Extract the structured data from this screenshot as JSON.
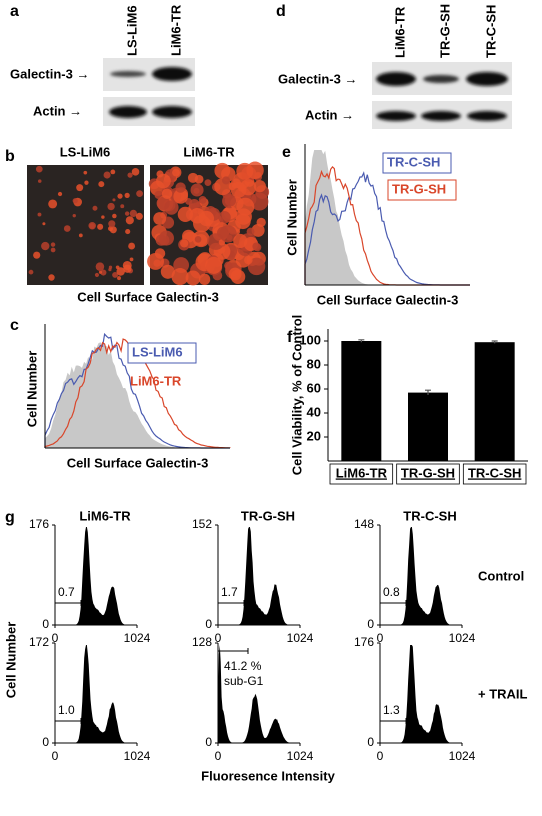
{
  "panel_a": {
    "label": "a",
    "lanes": [
      "LS-LiM6",
      "LiM6-TR"
    ],
    "rows": [
      "Galectin-3 →",
      "Actin →"
    ]
  },
  "panel_b": {
    "label": "b",
    "images": [
      "LS-LiM6",
      "LiM6-TR"
    ],
    "caption": "Cell Surface Galectin-3"
  },
  "panel_c": {
    "label": "c",
    "ylabel": "Cell Number",
    "xlabel": "Cell Surface Galectin-3",
    "legend": [
      {
        "name": "LS-LiM6",
        "color": "#4a5bb0"
      },
      {
        "name": "LiM6-TR",
        "color": "#d9462a"
      }
    ]
  },
  "panel_d": {
    "label": "d",
    "lanes": [
      "LiM6-TR",
      "TR-G-SH",
      "TR-C-SH"
    ],
    "rows": [
      "Galectin-3 →",
      "Actin →"
    ]
  },
  "panel_e": {
    "label": "e",
    "ylabel": "Cell Number",
    "xlabel": "Cell Surface Galectin-3",
    "legend": [
      {
        "name": "TR-C-SH",
        "color": "#4a5bb0"
      },
      {
        "name": "TR-G-SH",
        "color": "#d9462a"
      }
    ]
  },
  "chart_data": {
    "type": "bar",
    "panel_label": "f",
    "ylabel": "Cell Viability, % of Control",
    "categories": [
      "LiM6-TR",
      "TR-G-SH",
      "TR-C-SH"
    ],
    "values": [
      100,
      57,
      99
    ],
    "errors": [
      1,
      2,
      1
    ],
    "color": "#000000",
    "ylim": [
      0,
      110
    ],
    "yticks": [
      20,
      40,
      60,
      80,
      100
    ]
  },
  "panel_g": {
    "label": "g",
    "ylabel": "Cell Number",
    "xlabel": "Fluoresence Intensity",
    "columns": [
      "LiM6-TR",
      "TR-G-SH",
      "TR-C-SH"
    ],
    "rows": [
      "Control",
      "+ TRAIL"
    ],
    "plots": [
      [
        {
          "yticks": [
            0,
            176
          ],
          "xticks": [
            0,
            1024
          ],
          "gate": [
            "0.7"
          ]
        },
        {
          "yticks": [
            0,
            152
          ],
          "xticks": [
            0,
            1024
          ],
          "gate": [
            "1.7"
          ]
        },
        {
          "yticks": [
            0,
            148
          ],
          "xticks": [
            0,
            1024
          ],
          "gate": [
            "0.8"
          ]
        }
      ],
      [
        {
          "yticks": [
            0,
            172
          ],
          "xticks": [
            0,
            1024
          ],
          "gate": [
            "1.0"
          ]
        },
        {
          "yticks": [
            0,
            128
          ],
          "xticks": [
            0,
            1024
          ],
          "gate": [
            "41.2 %",
            "sub-G1"
          ]
        },
        {
          "yticks": [
            0,
            176
          ],
          "xticks": [
            0,
            1024
          ],
          "gate": [
            "1.3"
          ]
        }
      ]
    ]
  }
}
